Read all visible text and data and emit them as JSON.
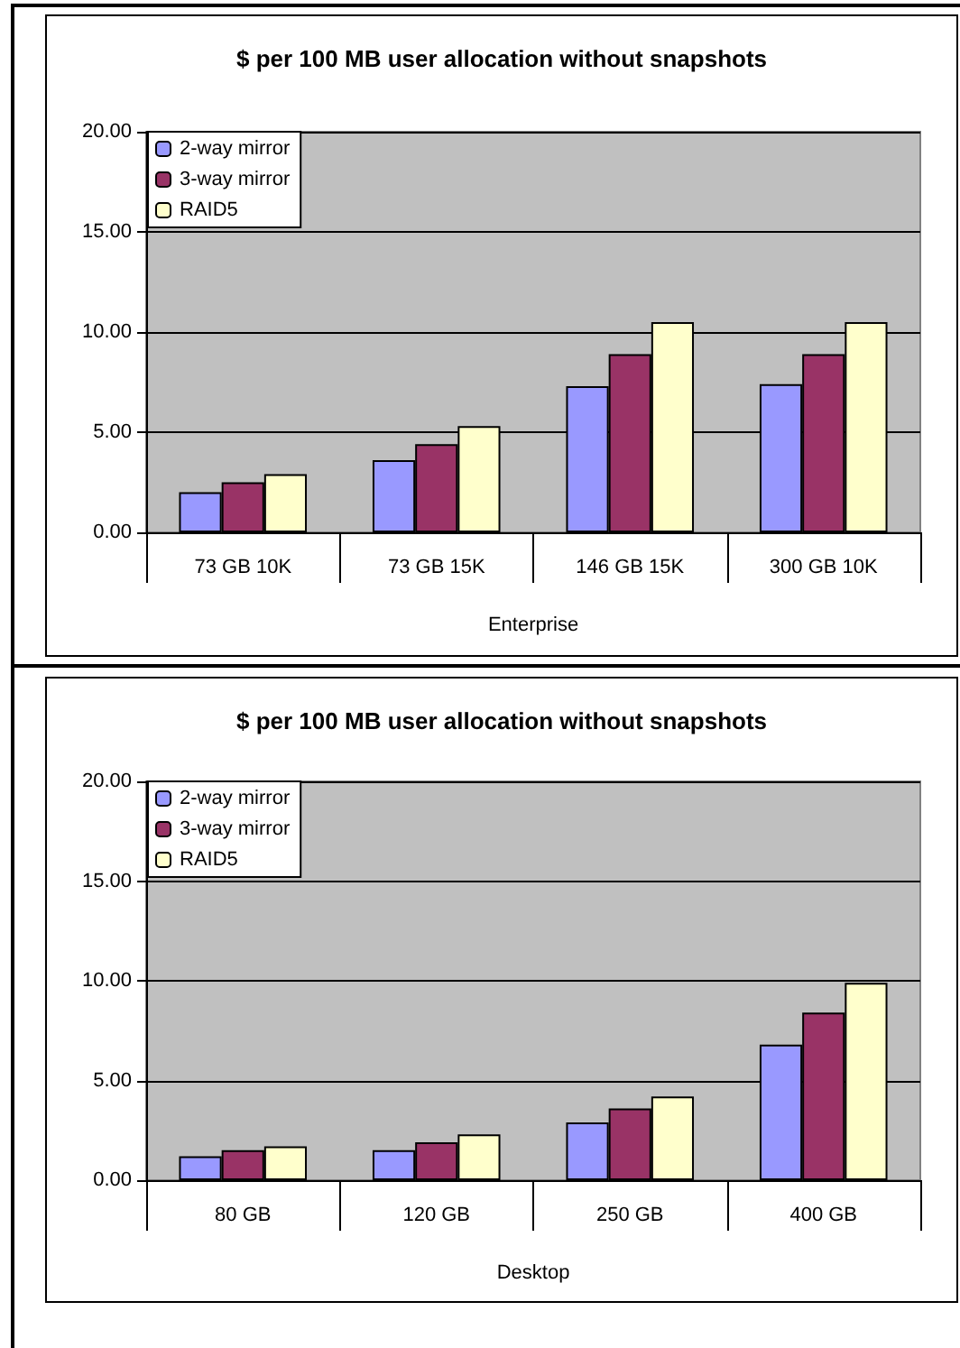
{
  "chart_data": [
    {
      "type": "bar",
      "title": "$ per 100 MB user allocation without snapshots",
      "xlabel": "Enterprise",
      "categories": [
        "73 GB 10K",
        "73 GB 15K",
        "146 GB 15K",
        "300 GB 10K"
      ],
      "series": [
        {
          "name": "2-way mirror",
          "color": "#9999ff",
          "values": [
            2.0,
            3.6,
            7.3,
            7.4
          ]
        },
        {
          "name": "3-way mirror",
          "color": "#993366",
          "values": [
            2.5,
            4.4,
            8.9,
            8.9
          ]
        },
        {
          "name": "RAID5",
          "color": "#ffffcc",
          "values": [
            2.9,
            5.3,
            10.5,
            10.5
          ]
        }
      ],
      "ylim": [
        0,
        20
      ],
      "yticks": [
        {
          "value": 0,
          "label": "0.00"
        },
        {
          "value": 5,
          "label": "5.00"
        },
        {
          "value": 10,
          "label": "10.00"
        },
        {
          "value": 15,
          "label": "15.00"
        },
        {
          "value": 20,
          "label": "20.00"
        }
      ],
      "grid": "y",
      "legend": "top left"
    },
    {
      "type": "bar",
      "title": "$ per 100 MB user allocation without snapshots",
      "xlabel": "Desktop",
      "categories": [
        "80 GB",
        "120 GB",
        "250 GB",
        "400 GB"
      ],
      "series": [
        {
          "name": "2-way mirror",
          "color": "#9999ff",
          "values": [
            1.2,
            1.5,
            2.9,
            6.8
          ]
        },
        {
          "name": "3-way mirror",
          "color": "#993366",
          "values": [
            1.5,
            1.9,
            3.6,
            8.4
          ]
        },
        {
          "name": "RAID5",
          "color": "#ffffcc",
          "values": [
            1.7,
            2.3,
            4.2,
            9.9
          ]
        }
      ],
      "ylim": [
        0,
        20
      ],
      "yticks": [
        {
          "value": 0,
          "label": "0.00"
        },
        {
          "value": 5,
          "label": "5.00"
        },
        {
          "value": 10,
          "label": "10.00"
        },
        {
          "value": 15,
          "label": "15.00"
        },
        {
          "value": 20,
          "label": "20.00"
        }
      ],
      "grid": "y",
      "legend": "top left"
    }
  ]
}
